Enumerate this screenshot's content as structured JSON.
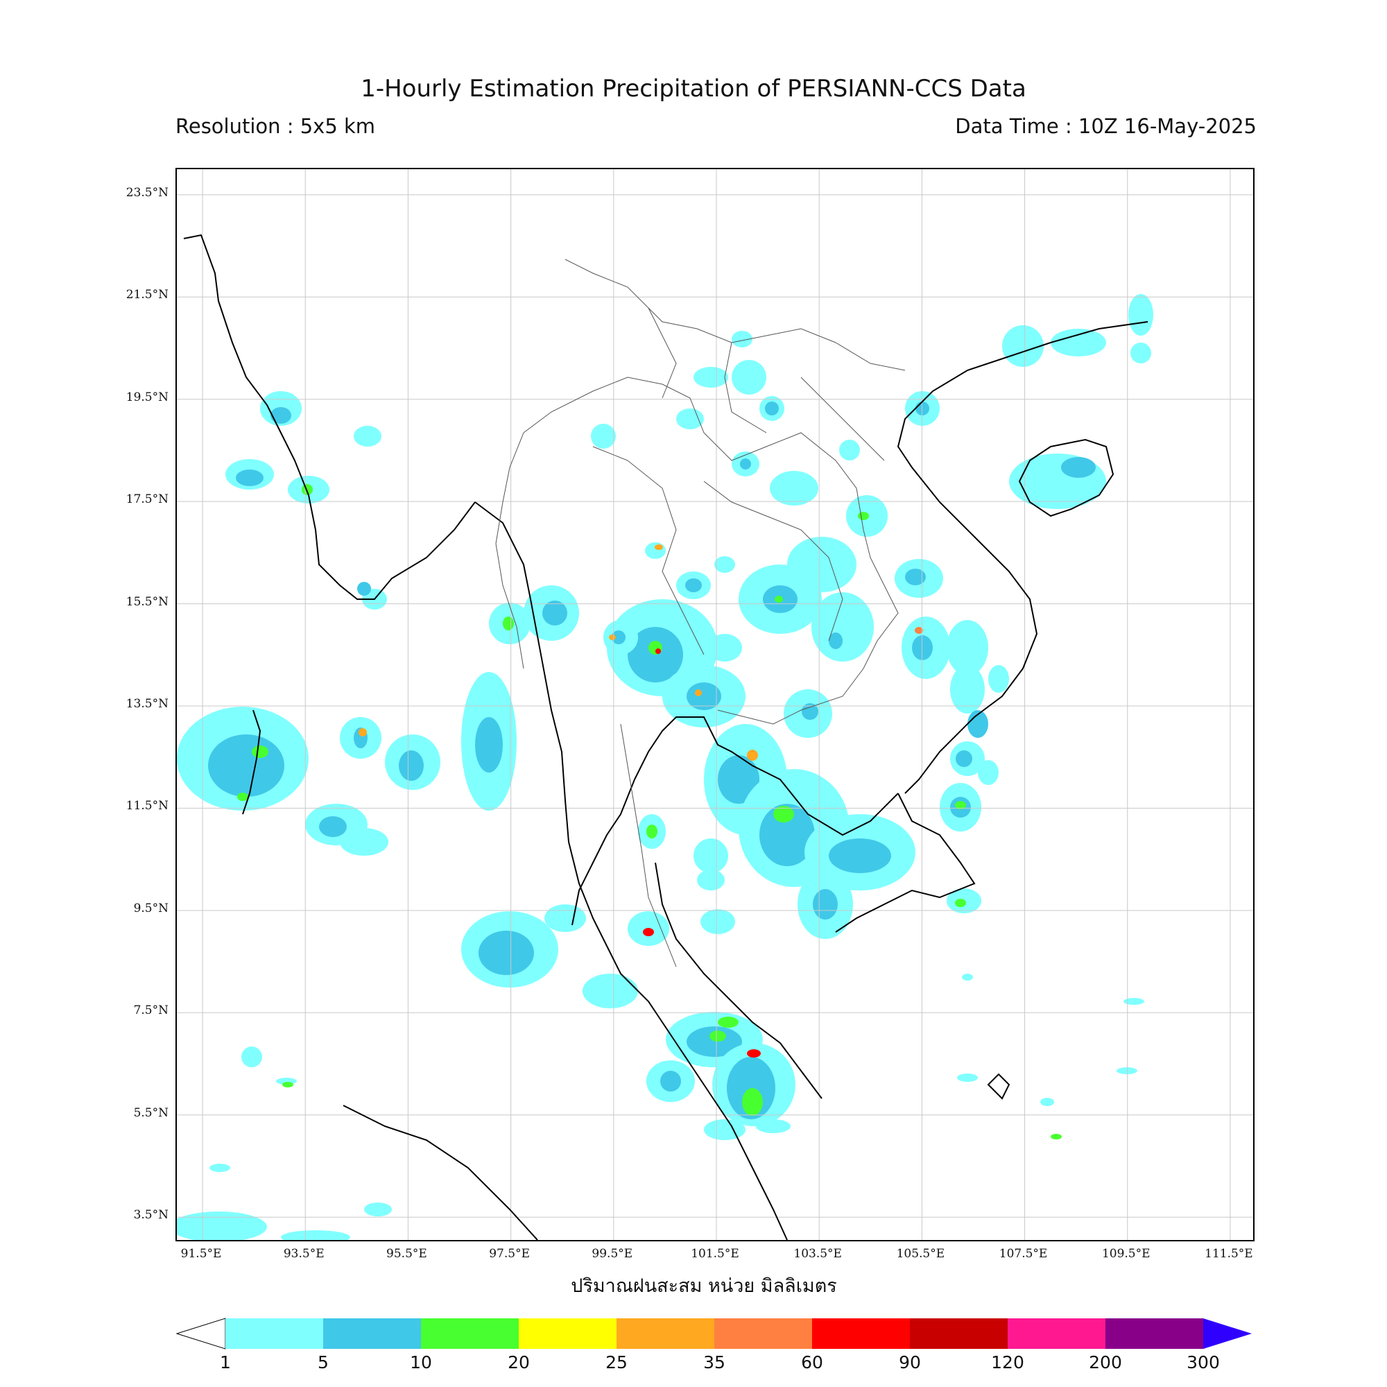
{
  "header": {
    "title": "1-Hourly Estimation Precipitation of PERSIANN-CCS Data",
    "resolution": "Resolution : 5x5 km",
    "data_time": "Data Time : 10Z 16-May-2025"
  },
  "map": {
    "lat_labels": [
      "23.5°N",
      "21.5°N",
      "19.5°N",
      "17.5°N",
      "15.5°N",
      "13.5°N",
      "11.5°N",
      "9.5°N",
      "7.5°N",
      "5.5°N",
      "3.5°N"
    ],
    "lon_labels": [
      "91.5°E",
      "93.5°E",
      "95.5°E",
      "97.5°E",
      "99.5°E",
      "101.5°E",
      "103.5°E",
      "105.5°E",
      "107.5°E",
      "109.5°E",
      "111.5°E"
    ],
    "extent": {
      "lon_min": 91.0,
      "lon_max": 112.0,
      "lat_min": 3.0,
      "lat_max": 24.0
    },
    "grid": true
  },
  "axis_title": "ปริมาณฝนสะสม หน่วย มิลลิเมตร",
  "colorbar": {
    "ticks": [
      "1",
      "5",
      "10",
      "20",
      "25",
      "35",
      "60",
      "90",
      "120",
      "200",
      "300"
    ],
    "colors": [
      "#80ffff",
      "#40c8e8",
      "#48ff30",
      "#ffff00",
      "#ffa820",
      "#ff8040",
      "#ff0000",
      "#c80000",
      "#ff1890",
      "#880088"
    ],
    "over_color": "#3000ff",
    "under_color": "#ffffff"
  }
}
